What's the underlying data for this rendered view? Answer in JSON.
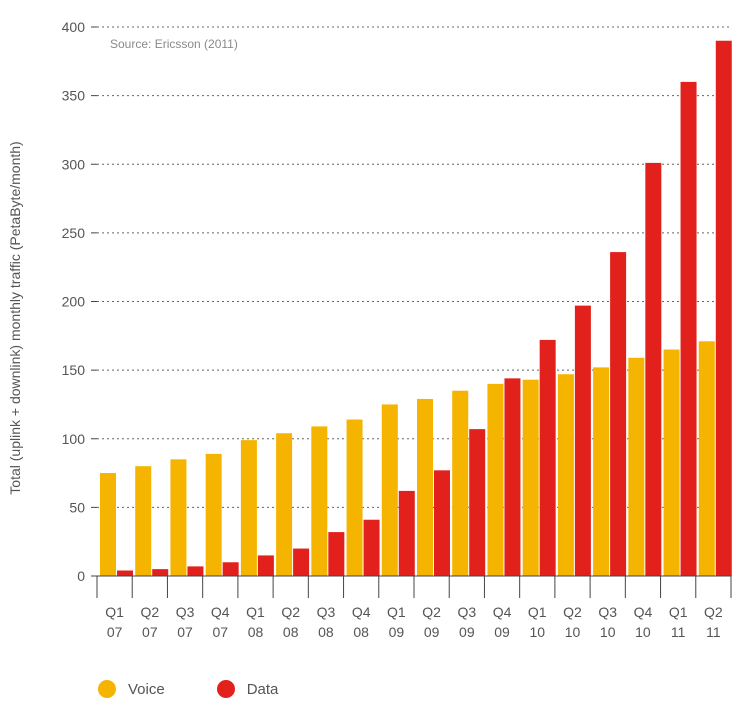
{
  "chart_data": {
    "type": "bar",
    "title": "",
    "annotation": "Source: Ericsson (2011)",
    "ylabel": "Total (uplink + downlink) monthly traffic (PetaByte/month)",
    "xlabel": "",
    "ylim": [
      0,
      400
    ],
    "yticks": [
      0,
      50,
      100,
      150,
      200,
      250,
      300,
      350,
      400
    ],
    "grid": true,
    "legend_position": "bottom-left",
    "categories": [
      {
        "q": "Q1",
        "y": "07"
      },
      {
        "q": "Q2",
        "y": "07"
      },
      {
        "q": "Q3",
        "y": "07"
      },
      {
        "q": "Q4",
        "y": "07"
      },
      {
        "q": "Q1",
        "y": "08"
      },
      {
        "q": "Q2",
        "y": "08"
      },
      {
        "q": "Q3",
        "y": "08"
      },
      {
        "q": "Q4",
        "y": "08"
      },
      {
        "q": "Q1",
        "y": "09"
      },
      {
        "q": "Q2",
        "y": "09"
      },
      {
        "q": "Q3",
        "y": "09"
      },
      {
        "q": "Q4",
        "y": "09"
      },
      {
        "q": "Q1",
        "y": "10"
      },
      {
        "q": "Q2",
        "y": "10"
      },
      {
        "q": "Q3",
        "y": "10"
      },
      {
        "q": "Q4",
        "y": "10"
      },
      {
        "q": "Q1",
        "y": "11"
      },
      {
        "q": "Q2",
        "y": "11"
      }
    ],
    "series": [
      {
        "name": "Voice",
        "color": "#F5B400",
        "values": [
          75,
          80,
          85,
          89,
          99,
          104,
          109,
          114,
          125,
          129,
          135,
          140,
          143,
          147,
          152,
          159,
          165,
          171
        ]
      },
      {
        "name": "Data",
        "color": "#E2211C",
        "values": [
          4,
          5,
          7,
          10,
          15,
          20,
          32,
          41,
          62,
          77,
          107,
          144,
          172,
          197,
          236,
          301,
          360,
          390
        ]
      }
    ]
  }
}
